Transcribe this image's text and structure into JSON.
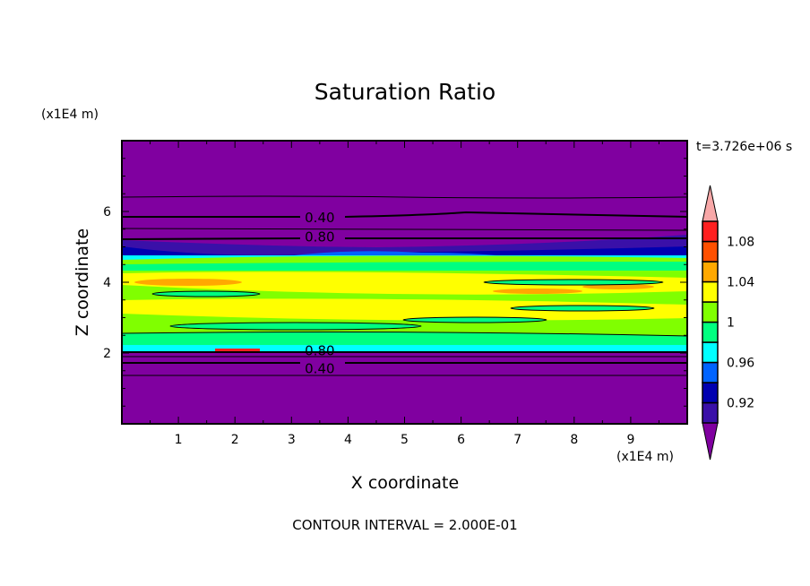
{
  "chart_data": {
    "type": "heatmap",
    "title": "Saturation Ratio",
    "xlabel": "X coordinate",
    "ylabel": "Z coordinate",
    "x_unit": "(x1E4 m)",
    "y_unit": "(x1E4 m)",
    "xlim": [
      0,
      10
    ],
    "ylim": [
      0,
      8
    ],
    "x_ticks": [
      1,
      2,
      3,
      4,
      5,
      6,
      7,
      8,
      9
    ],
    "y_ticks": [
      2,
      4,
      6
    ],
    "time_label": "t=3.726e+06 s",
    "contour_interval_label": "CONTOUR INTERVAL = 2.000E-01",
    "contour_labels": [
      {
        "text": "0.40",
        "x": 3.5,
        "y": 5.85
      },
      {
        "text": "0.80",
        "x": 3.5,
        "y": 5.3
      },
      {
        "text": "0.80",
        "x": 3.5,
        "y": 1.98
      },
      {
        "text": "0.40",
        "x": 3.5,
        "y": 1.7
      }
    ],
    "colorbar": {
      "levels": [
        0.9,
        0.92,
        0.94,
        0.96,
        0.98,
        1.0,
        1.02,
        1.04,
        1.06,
        1.08,
        1.1
      ],
      "labels": [
        "0.92",
        "0.96",
        "1",
        "1.04",
        "1.08"
      ],
      "label_values": [
        0.92,
        0.96,
        1.0,
        1.04,
        1.08
      ],
      "colors": [
        "#3a10a8",
        "#0000b0",
        "#0064ff",
        "#00ffff",
        "#00ff80",
        "#80ff00",
        "#ffff00",
        "#ffa800",
        "#ff5000",
        "#ff2020"
      ],
      "under_color": "#8000a0",
      "over_color": "#f8a8a8"
    }
  }
}
